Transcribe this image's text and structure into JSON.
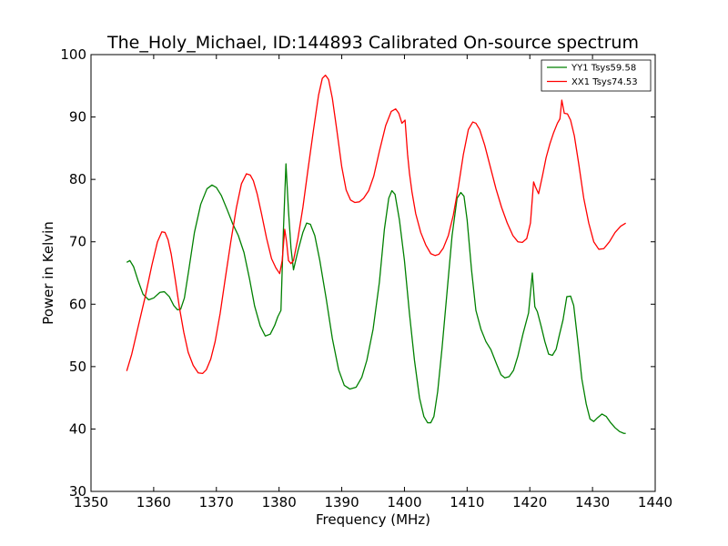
{
  "chart_data": {
    "type": "line",
    "title": "The_Holy_Michael, ID:144893 Calibrated On-source spectrum",
    "xlabel": "Frequency (MHz)",
    "ylabel": "Power in Kelvin",
    "xlim": [
      1350,
      1440
    ],
    "ylim": [
      30,
      100
    ],
    "xticks": [
      1350,
      1360,
      1370,
      1380,
      1390,
      1400,
      1410,
      1420,
      1430,
      1440
    ],
    "yticks": [
      30,
      40,
      50,
      60,
      70,
      80,
      90,
      100
    ],
    "grid": false,
    "legend_position": "top-right",
    "series": [
      {
        "name": "YY1 Tsys59.58",
        "color": "#008000",
        "x": [
          1355.7,
          1356.2,
          1356.8,
          1357.5,
          1358.3,
          1359.2,
          1360.0,
          1361.0,
          1361.7,
          1362.5,
          1363.2,
          1363.8,
          1364.3,
          1364.9,
          1365.6,
          1366.5,
          1367.5,
          1368.5,
          1369.3,
          1370.0,
          1370.8,
          1371.7,
          1372.6,
          1373.5,
          1374.4,
          1375.3,
          1376.1,
          1377.0,
          1377.8,
          1378.6,
          1379.3,
          1379.8,
          1380.3,
          1380.7,
          1381.1,
          1381.5,
          1381.9,
          1382.3,
          1383.0,
          1383.8,
          1384.4,
          1385.0,
          1385.7,
          1386.5,
          1387.5,
          1388.5,
          1389.5,
          1390.4,
          1391.3,
          1392.3,
          1393.2,
          1394.0,
          1395.0,
          1396.0,
          1396.8,
          1397.5,
          1398.0,
          1398.5,
          1399.2,
          1400.0,
          1400.8,
          1401.6,
          1402.4,
          1403.1,
          1403.7,
          1404.2,
          1404.7,
          1405.3,
          1406.0,
          1406.8,
          1407.6,
          1408.4,
          1409.0,
          1409.5,
          1410.0,
          1410.7,
          1411.4,
          1412.2,
          1413.0,
          1413.8,
          1414.7,
          1415.4,
          1416.0,
          1416.7,
          1417.4,
          1418.1,
          1418.9,
          1419.8,
          1420.4,
          1420.8,
          1421.2,
          1421.8,
          1422.4,
          1423.0,
          1423.6,
          1424.2,
          1424.7,
          1425.3,
          1425.9,
          1426.5,
          1427.0,
          1427.6,
          1428.3,
          1429.0,
          1429.6,
          1430.2,
          1430.8,
          1431.5,
          1432.2,
          1432.9,
          1433.6,
          1434.3,
          1435.0,
          1435.3
        ],
        "y": [
          66.7,
          67.0,
          66.0,
          63.8,
          61.6,
          60.7,
          61.0,
          61.9,
          62.0,
          61.2,
          59.8,
          59.1,
          59.2,
          61.0,
          65.5,
          71.5,
          76.0,
          78.5,
          79.1,
          78.7,
          77.4,
          75.2,
          72.9,
          71.0,
          68.3,
          64.0,
          59.7,
          56.5,
          54.9,
          55.2,
          56.6,
          58.0,
          59.0,
          72.0,
          82.5,
          75.0,
          69.0,
          65.5,
          68.5,
          71.5,
          73.0,
          72.8,
          71.0,
          67.0,
          61.0,
          54.5,
          49.5,
          47.0,
          46.4,
          46.7,
          48.3,
          51.0,
          56.0,
          63.5,
          72.0,
          77.0,
          78.2,
          77.6,
          73.5,
          67.0,
          58.5,
          51.0,
          45.0,
          42.0,
          41.0,
          41.0,
          42.0,
          46.0,
          53.0,
          62.0,
          71.0,
          77.0,
          77.9,
          77.3,
          73.5,
          65.5,
          59.0,
          56.0,
          54.0,
          52.7,
          50.4,
          48.7,
          48.2,
          48.4,
          49.4,
          51.7,
          55.2,
          58.6,
          65.0,
          59.6,
          58.8,
          56.5,
          54.0,
          52.0,
          51.8,
          52.8,
          55.0,
          57.5,
          61.2,
          61.3,
          59.8,
          54.5,
          48.0,
          44.0,
          41.6,
          41.2,
          41.8,
          42.4,
          42.0,
          41.0,
          40.2,
          39.6,
          39.3,
          39.3
        ]
      },
      {
        "name": "XX1 Tsys74.53",
        "color": "#ff0000",
        "x": [
          1355.7,
          1356.5,
          1357.5,
          1358.6,
          1359.7,
          1360.6,
          1361.3,
          1361.8,
          1362.3,
          1362.8,
          1363.4,
          1364.1,
          1364.8,
          1365.5,
          1366.3,
          1367.1,
          1367.8,
          1368.4,
          1369.1,
          1369.8,
          1370.6,
          1371.4,
          1372.3,
          1373.2,
          1374.0,
          1374.8,
          1375.4,
          1375.9,
          1376.5,
          1377.2,
          1378.0,
          1378.8,
          1379.5,
          1380.1,
          1380.5,
          1380.9,
          1381.2,
          1381.5,
          1381.9,
          1382.3,
          1383.0,
          1383.8,
          1384.6,
          1385.5,
          1386.3,
          1386.9,
          1387.4,
          1387.9,
          1388.5,
          1389.2,
          1390.0,
          1390.7,
          1391.4,
          1392.1,
          1392.8,
          1393.5,
          1394.3,
          1395.1,
          1396.0,
          1397.0,
          1397.9,
          1398.6,
          1399.1,
          1399.6,
          1400.1,
          1400.5,
          1400.8,
          1401.2,
          1401.8,
          1402.6,
          1403.4,
          1404.2,
          1404.9,
          1405.5,
          1406.2,
          1407.0,
          1407.8,
          1408.6,
          1409.4,
          1410.2,
          1410.9,
          1411.4,
          1412.0,
          1412.8,
          1413.7,
          1414.6,
          1415.5,
          1416.4,
          1417.3,
          1418.1,
          1418.8,
          1419.5,
          1420.1,
          1420.6,
          1420.9,
          1421.4,
          1422.0,
          1422.6,
          1423.2,
          1423.8,
          1424.4,
          1424.8,
          1425.1,
          1425.5,
          1426.0,
          1426.5,
          1427.1,
          1427.8,
          1428.6,
          1429.4,
          1430.2,
          1431.0,
          1431.8,
          1432.7,
          1433.6,
          1434.5,
          1435.3
        ],
        "y": [
          49.3,
          52.0,
          56.3,
          61.0,
          66.2,
          70.0,
          71.6,
          71.5,
          70.3,
          68.0,
          64.2,
          59.5,
          55.5,
          52.3,
          50.2,
          49.0,
          48.9,
          49.5,
          51.2,
          54.0,
          58.5,
          64.0,
          70.0,
          75.5,
          79.3,
          80.9,
          80.7,
          79.8,
          77.7,
          74.5,
          70.6,
          67.3,
          65.8,
          64.9,
          67.0,
          72.0,
          70.0,
          67.0,
          66.5,
          67.0,
          70.5,
          75.5,
          81.5,
          88.0,
          93.5,
          96.2,
          96.7,
          96.0,
          93.0,
          88.0,
          82.0,
          78.3,
          76.7,
          76.3,
          76.4,
          77.0,
          78.2,
          80.5,
          84.5,
          88.6,
          90.9,
          91.3,
          90.6,
          89.0,
          89.5,
          84.0,
          81.0,
          78.0,
          74.5,
          71.5,
          69.5,
          68.1,
          67.8,
          68.0,
          69.0,
          71.0,
          74.3,
          78.8,
          84.0,
          88.0,
          89.2,
          89.0,
          88.0,
          85.5,
          82.0,
          78.5,
          75.5,
          73.0,
          71.0,
          70.0,
          69.9,
          70.5,
          73.0,
          79.6,
          78.8,
          77.7,
          80.5,
          83.5,
          85.7,
          87.5,
          89.0,
          89.7,
          92.7,
          90.6,
          90.5,
          89.5,
          87.0,
          82.5,
          77.0,
          73.0,
          70.0,
          68.8,
          68.9,
          70.0,
          71.5,
          72.5,
          73.0
        ]
      }
    ]
  }
}
